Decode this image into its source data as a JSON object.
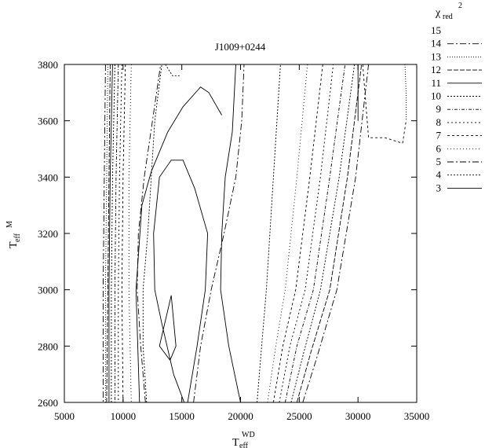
{
  "chart_data": {
    "type": "line",
    "title": "J1009+0244",
    "xlabel": {
      "main": "T",
      "sub": "eff",
      "sup": "WD"
    },
    "ylabel": {
      "main": "T",
      "sub": "eff",
      "sup": "M"
    },
    "legend_title": {
      "main": "χ",
      "sub": "red",
      "sup": "2"
    },
    "legend_position": "outside-right",
    "grid": false,
    "xlim": [
      5000,
      35000
    ],
    "ylim": [
      2600,
      3800
    ],
    "x_ticks": [
      5000,
      10000,
      15000,
      20000,
      25000,
      30000,
      35000
    ],
    "y_ticks": [
      2600,
      2800,
      3000,
      3200,
      3400,
      3600,
      3800
    ],
    "series": [
      {
        "name": "15",
        "dash": "",
        "lines": []
      },
      {
        "name": "14",
        "dash": "8,3,2,3",
        "lines": [
          [
            [
              8500,
              3800
            ],
            [
              8400,
              3400
            ],
            [
              8300,
              3000
            ],
            [
              8300,
              2600
            ]
          ],
          [
            [
              25300,
              2600
            ],
            [
              26500,
              2760
            ],
            [
              28200,
              3000
            ],
            [
              29800,
              3400
            ],
            [
              30900,
              3800
            ]
          ]
        ]
      },
      {
        "name": "13",
        "dash": "1,2",
        "lines": [
          [
            [
              8700,
              3800
            ],
            [
              8600,
              3400
            ],
            [
              8500,
              3000
            ],
            [
              8500,
              2600
            ]
          ],
          [
            [
              34000,
              3800
            ],
            [
              34100,
              3700
            ],
            [
              34100,
              3600
            ]
          ]
        ]
      },
      {
        "name": "12",
        "dash": "6,2",
        "lines": [
          [
            [
              8900,
              3800
            ],
            [
              8800,
              3400
            ],
            [
              8700,
              3000
            ],
            [
              8600,
              2600
            ]
          ],
          [
            [
              24800,
              2600
            ],
            [
              26000,
              2780
            ],
            [
              27600,
              3000
            ],
            [
              29100,
              3400
            ],
            [
              30300,
              3800
            ]
          ]
        ]
      },
      {
        "name": "11",
        "dash": "",
        "lines": [
          [
            [
              9100,
              3800
            ],
            [
              8900,
              3400
            ],
            [
              8800,
              3000
            ],
            [
              8800,
              2600
            ]
          ],
          [
            [
              30000,
              3800
            ],
            [
              30000,
              3600
            ]
          ]
        ]
      },
      {
        "name": "10",
        "dash": "2,2",
        "lines": [
          [
            [
              9300,
              3800
            ],
            [
              9100,
              3400
            ],
            [
              9000,
              3000
            ],
            [
              9000,
              2600
            ]
          ],
          [
            [
              24300,
              2600
            ],
            [
              25400,
              2780
            ],
            [
              26800,
              3000
            ],
            [
              28400,
              3400
            ],
            [
              29700,
              3800
            ]
          ]
        ]
      },
      {
        "name": "9",
        "dash": "4,2,1,2",
        "lines": [
          [
            [
              9600,
              3800
            ],
            [
              9400,
              3400
            ],
            [
              9300,
              3000
            ],
            [
              9300,
              2600
            ]
          ],
          [
            [
              23800,
              2600
            ],
            [
              24800,
              2800
            ],
            [
              26200,
              3000
            ],
            [
              27600,
              3400
            ],
            [
              28900,
              3800
            ]
          ]
        ]
      },
      {
        "name": "8",
        "dash": "2,3",
        "lines": [
          [
            [
              9900,
              3800
            ],
            [
              9700,
              3400
            ],
            [
              9600,
              3000
            ],
            [
              9600,
              2600
            ]
          ],
          [
            [
              23300,
              2600
            ],
            [
              24200,
              2800
            ],
            [
              25500,
              3000
            ],
            [
              26800,
              3400
            ],
            [
              27900,
              3800
            ]
          ]
        ]
      },
      {
        "name": "7",
        "dash": "3,3",
        "lines": [
          [
            [
              10200,
              3800
            ],
            [
              10000,
              3400
            ],
            [
              9900,
              3000
            ],
            [
              10000,
              2600
            ]
          ],
          [
            [
              30400,
              3800
            ],
            [
              30900,
              3540
            ],
            [
              32300,
              3540
            ],
            [
              33800,
              3520
            ],
            [
              34100,
              3600
            ]
          ],
          [
            [
              22800,
              2600
            ],
            [
              23600,
              2800
            ],
            [
              24700,
              3000
            ],
            [
              25900,
              3400
            ],
            [
              27000,
              3800
            ]
          ]
        ]
      },
      {
        "name": "6",
        "dash": "1,3",
        "lines": [
          [
            [
              10700,
              3800
            ],
            [
              10500,
              3400
            ],
            [
              10500,
              3000
            ],
            [
              10700,
              2600
            ]
          ],
          [
            [
              22300,
              2600
            ],
            [
              23000,
              2800
            ],
            [
              23800,
              3000
            ],
            [
              24800,
              3400
            ],
            [
              25700,
              3800
            ]
          ]
        ]
      },
      {
        "name": "5",
        "dash": "8,3,2,3",
        "lines": [
          [
            [
              16000,
              2600
            ],
            [
              16600,
              2800
            ],
            [
              17500,
              3000
            ],
            [
              18600,
              3200
            ],
            [
              19600,
              3400
            ],
            [
              20100,
              3600
            ],
            [
              20300,
              3800
            ]
          ],
          [
            [
              11900,
              2600
            ],
            [
              11500,
              2800
            ],
            [
              11200,
              3000
            ],
            [
              11300,
              3200
            ],
            [
              11800,
              3400
            ],
            [
              12500,
              3600
            ],
            [
              13200,
              3800
            ]
          ]
        ]
      },
      {
        "name": "4",
        "dash": "2,2",
        "lines": [
          [
            [
              21400,
              2600
            ],
            [
              21800,
              2800
            ],
            [
              22200,
              3000
            ],
            [
              22800,
              3400
            ],
            [
              23400,
              3800
            ]
          ],
          [
            [
              13600,
              3800
            ],
            [
              14200,
              3760
            ],
            [
              14900,
              3760
            ]
          ],
          [
            [
              12000,
              2600
            ],
            [
              11700,
              2800
            ],
            [
              11700,
              3000
            ],
            [
              12100,
              3200
            ],
            [
              12700,
              3600
            ],
            [
              13300,
              3800
            ]
          ]
        ]
      },
      {
        "name": "3",
        "dash": "",
        "lines": [
          [
            [
              14000,
              2750
            ],
            [
              14500,
              2800
            ],
            [
              14100,
              2980
            ],
            [
              13100,
              2800
            ],
            [
              14000,
              2750
            ]
          ],
          [
            [
              20000,
              2600
            ],
            [
              19000,
              2800
            ],
            [
              18300,
              3000
            ],
            [
              18400,
              3200
            ],
            [
              18700,
              3400
            ],
            [
              19300,
              3560
            ],
            [
              19600,
              3800
            ]
          ],
          [
            [
              15200,
              2600
            ],
            [
              14300,
              2700
            ],
            [
              13300,
              2880
            ],
            [
              12700,
              3000
            ],
            [
              12600,
              3200
            ],
            [
              13100,
              3400
            ],
            [
              14100,
              3460
            ],
            [
              15100,
              3460
            ],
            [
              16100,
              3360
            ],
            [
              17200,
              3200
            ],
            [
              17000,
              3000
            ],
            [
              16300,
              2800
            ],
            [
              15500,
              2600
            ]
          ],
          [
            [
              18400,
              3620
            ],
            [
              17300,
              3700
            ],
            [
              16600,
              3720
            ],
            [
              15100,
              3650
            ],
            [
              13800,
              3560
            ],
            [
              12400,
              3420
            ],
            [
              11600,
              3300
            ],
            [
              11100,
              3000
            ],
            [
              11400,
              2600
            ]
          ]
        ]
      }
    ]
  }
}
